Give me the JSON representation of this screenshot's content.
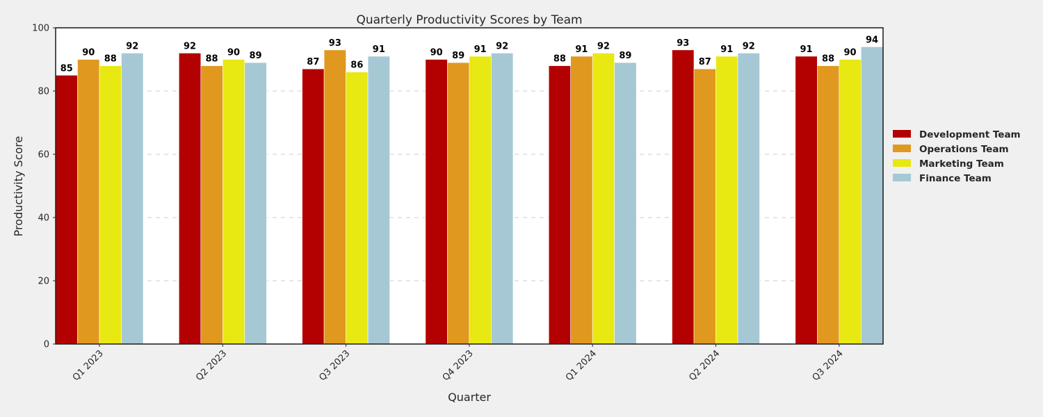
{
  "chart_data": {
    "type": "bar",
    "title": "Quarterly Productivity Scores by Team",
    "xlabel": "Quarter",
    "ylabel": "Productivity Score",
    "ylim": [
      0,
      100
    ],
    "yticks": [
      "0",
      "20",
      "40",
      "60",
      "80",
      "100"
    ],
    "categories": [
      "Q1 2023",
      "Q2 2023",
      "Q3 2023",
      "Q4 2023",
      "Q1 2024",
      "Q2 2024",
      "Q3 2024"
    ],
    "series": [
      {
        "name": "Development Team",
        "color": "#b30000",
        "values": [
          85,
          92,
          87,
          90,
          88,
          93,
          91
        ]
      },
      {
        "name": "Operations Team",
        "color": "#e0991e",
        "values": [
          90,
          88,
          93,
          89,
          91,
          87,
          88
        ]
      },
      {
        "name": "Marketing Team",
        "color": "#e8e812",
        "values": [
          88,
          90,
          86,
          91,
          92,
          91,
          90
        ]
      },
      {
        "name": "Finance Team",
        "color": "#a6c8d4",
        "values": [
          92,
          89,
          91,
          92,
          89,
          92,
          94
        ]
      }
    ],
    "grid": "y-dashed",
    "legend_position": "right",
    "background_color": "#f0f0f0",
    "plot_background_color": "#ffffff"
  }
}
